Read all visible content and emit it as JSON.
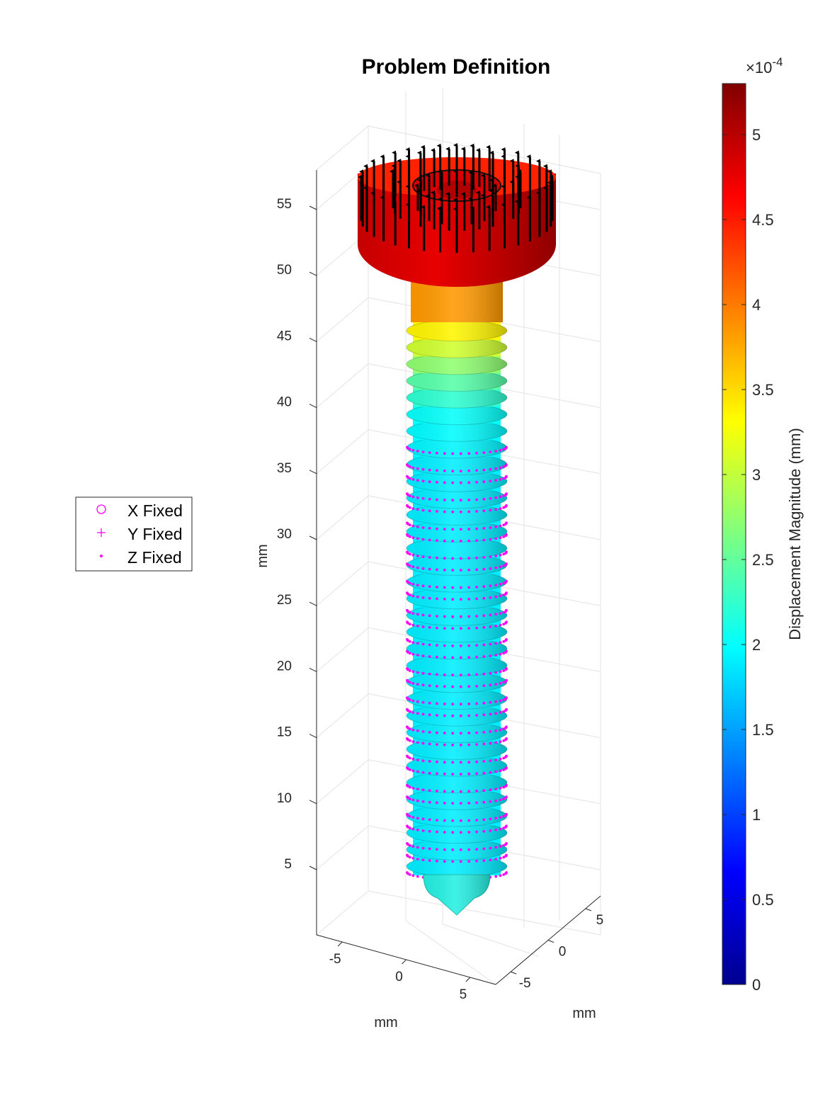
{
  "chart_data": {
    "type": "surface3d",
    "title": "Problem Definition",
    "z_axis": {
      "label": "mm",
      "ticks": [
        5,
        10,
        15,
        20,
        25,
        30,
        35,
        40,
        45,
        50,
        55
      ],
      "range": [
        0,
        57
      ]
    },
    "x_axis": {
      "label": "mm",
      "ticks": [
        -5,
        0,
        5
      ],
      "range": [
        -7,
        7
      ]
    },
    "y_axis": {
      "label": "mm",
      "ticks": [
        -5,
        0,
        5
      ],
      "range": [
        -7,
        7
      ]
    },
    "colorbar": {
      "label": "Displacement Magnitude (mm)",
      "exponent_label": "×10",
      "exponent": "-4",
      "ticks": [
        "0",
        "0.5",
        "1",
        "1.5",
        "2",
        "2.5",
        "3",
        "3.5",
        "4",
        "4.5",
        "5"
      ],
      "range": [
        0,
        5.3
      ],
      "colormap": "jet"
    },
    "legend": {
      "location": "left",
      "entries": [
        {
          "label": "X Fixed",
          "marker": "o",
          "color": "#ff00ff"
        },
        {
          "label": "Y Fixed",
          "marker": "+",
          "color": "#ff00ff"
        },
        {
          "label": "Z Fixed",
          "marker": ".",
          "color": "#ff00ff"
        }
      ]
    },
    "screw_displacement_profile": [
      {
        "z": 53,
        "value": 5.0
      },
      {
        "z": 49,
        "value": 3.9
      },
      {
        "z": 45,
        "value": 3.3
      },
      {
        "z": 42,
        "value": 2.5
      },
      {
        "z": 39,
        "value": 2.0
      },
      {
        "z": 35,
        "value": 1.9
      },
      {
        "z": 5,
        "value": 1.9
      },
      {
        "z": 1,
        "value": 1.8
      }
    ],
    "applied_load_direction": "+z",
    "fixed_region_z": [
      5,
      37
    ]
  }
}
